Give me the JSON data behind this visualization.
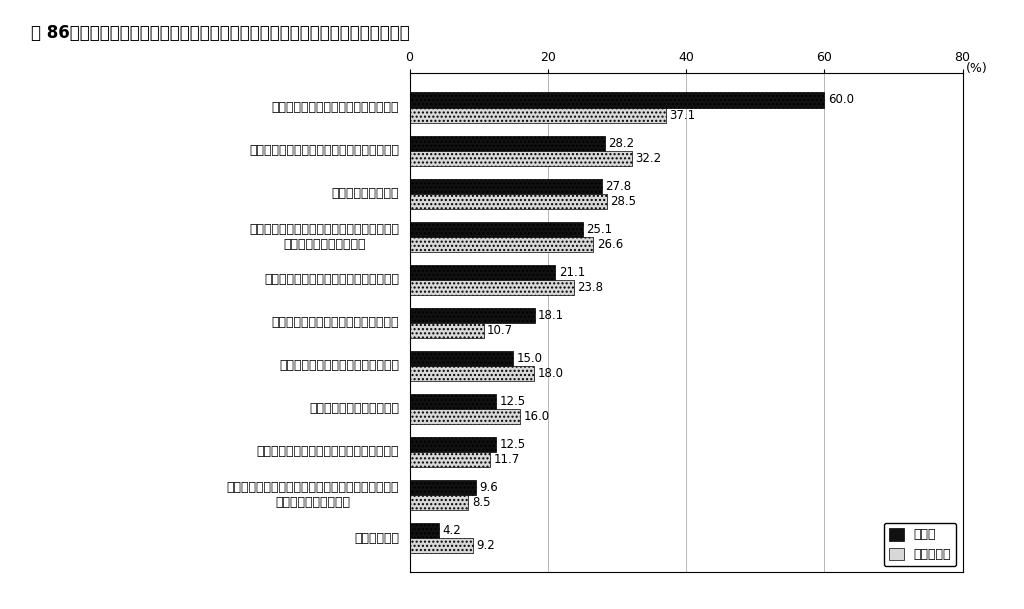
{
  "title": "図 86　自己啓発を行う上での問題点の内訳（正社員・正社員以外）（複数回答）",
  "categories": [
    "仕事が忙しくて自己啓発の余裕がない",
    "家事・育児が忙しくて自己啓発の余裕がない",
    "費用がかかりすぎる",
    "どのようなコースが自分の目指すキャリアに\n　適切なのかわからない",
    "自分の目指すべきキャリアがわからない",
    "自己啓発の結果が社内で評価されない",
    "適当な教育訓練機関が見つからない",
    "コース等の情報が得にくい",
    "コース受講や資格取得の効果が定かでない",
    "休暇取得・定時退社・早退・短時間勤務の選択等が\n会社の都合でできない",
    "その他の問題"
  ],
  "seishain": [
    60.0,
    28.2,
    27.8,
    25.1,
    21.1,
    18.1,
    15.0,
    12.5,
    12.5,
    9.6,
    4.2
  ],
  "hiseishain": [
    37.1,
    32.2,
    28.5,
    26.6,
    23.8,
    10.7,
    18.0,
    16.0,
    11.7,
    8.5,
    9.2
  ],
  "xlim": [
    0,
    80
  ],
  "xticks": [
    0,
    20,
    40,
    60,
    80
  ],
  "xlabel_suffix": "80(%)",
  "legend_seishain": "■正社員",
  "legend_hiseishain": "□正社員以外",
  "bar_height": 0.35,
  "color_seishain": "#111111",
  "color_hiseishain": "#d8d8d8",
  "background": "#ffffff",
  "fontsize_title": 12,
  "fontsize_tick": 9,
  "fontsize_bar_label": 8.5
}
